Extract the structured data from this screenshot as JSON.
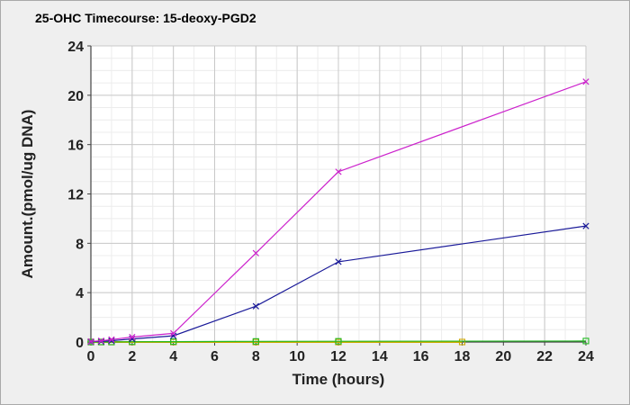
{
  "chart_data": {
    "type": "line",
    "title": "25-OHC Timecourse: 15-deoxy-PGD2",
    "xlabel": "Time (hours)",
    "ylabel": "Amount.(pmol/ug DNA)",
    "xlim": [
      0,
      24
    ],
    "ylim": [
      0,
      24
    ],
    "x_ticks": [
      "0",
      "2",
      "4",
      "6",
      "8",
      "10",
      "12",
      "14",
      "16",
      "18",
      "20",
      "22",
      "24"
    ],
    "y_ticks": [
      "0",
      "4",
      "8",
      "12",
      "16",
      "20",
      "24"
    ],
    "grid": true,
    "legend": "none",
    "series": [
      {
        "color": "#cc22cc",
        "marker": "x",
        "points": [
          [
            0,
            0.05
          ],
          [
            0.5,
            0.1
          ],
          [
            1,
            0.2
          ],
          [
            2,
            0.4
          ],
          [
            4,
            0.7
          ],
          [
            8,
            7.2
          ],
          [
            12,
            13.8
          ],
          [
            24,
            21.1
          ]
        ]
      },
      {
        "color": "#1a1a99",
        "marker": "x",
        "points": [
          [
            0,
            0.02
          ],
          [
            0.5,
            0.05
          ],
          [
            1,
            0.1
          ],
          [
            2,
            0.25
          ],
          [
            4,
            0.5
          ],
          [
            8,
            2.9
          ],
          [
            12,
            6.5
          ],
          [
            24,
            9.4
          ]
        ]
      },
      {
        "color": "#22bb22",
        "marker": "square",
        "points": [
          [
            0,
            0.0
          ],
          [
            0.5,
            0.0
          ],
          [
            1,
            0.0
          ],
          [
            2,
            0.02
          ],
          [
            4,
            0.03
          ],
          [
            8,
            0.05
          ],
          [
            12,
            0.06
          ],
          [
            24,
            0.08
          ]
        ]
      },
      {
        "color": "#ccaa00",
        "marker": "square",
        "points": [
          [
            0,
            0.0
          ],
          [
            0.5,
            0.0
          ],
          [
            1,
            0.0
          ],
          [
            2,
            0.0
          ],
          [
            4,
            0.0
          ],
          [
            8,
            0.0
          ],
          [
            12,
            0.0
          ],
          [
            18,
            0.0
          ]
        ]
      },
      {
        "color": "#cc2222",
        "marker": "square",
        "points": [
          [
            0,
            0.0
          ],
          [
            0.5,
            0.0
          ],
          [
            1,
            0.0
          ],
          [
            2,
            0.0
          ],
          [
            4,
            0.0
          ],
          [
            8,
            0.0
          ],
          [
            12,
            0.0
          ]
        ]
      }
    ]
  }
}
